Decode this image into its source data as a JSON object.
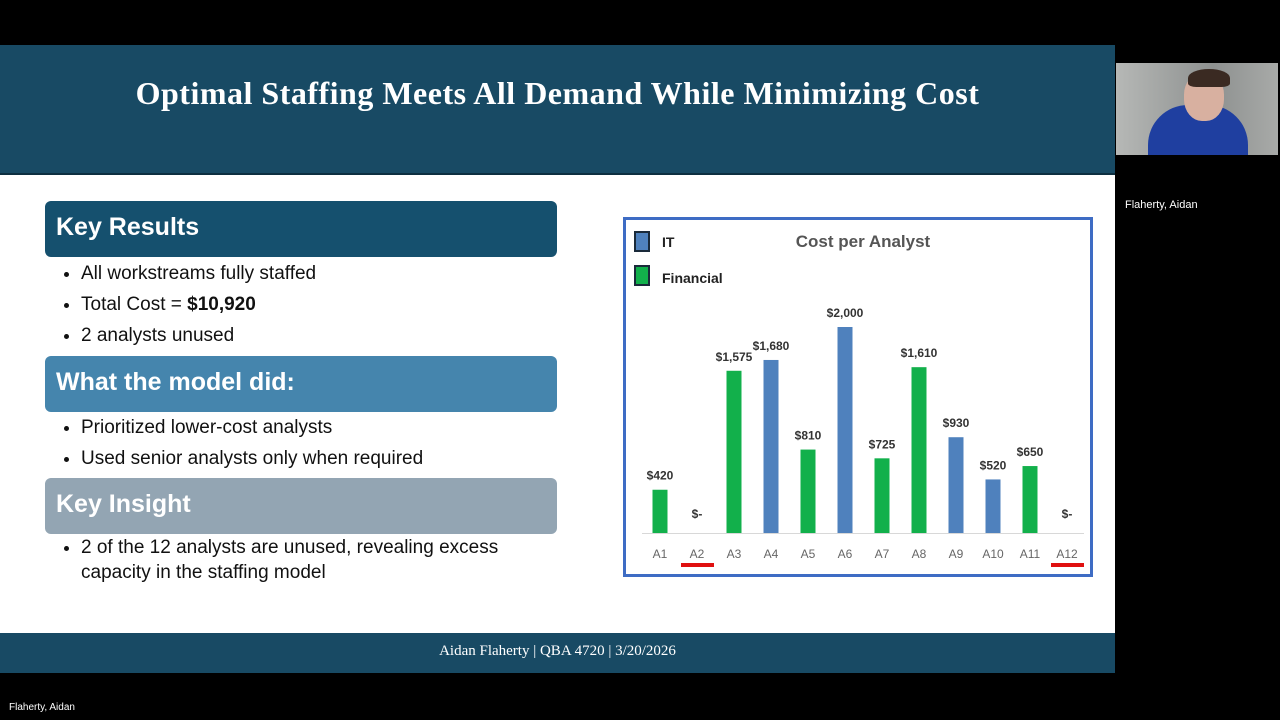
{
  "slide": {
    "title": "Optimal Staffing Meets All Demand While Minimizing Cost",
    "sections": [
      {
        "heading": "Key Results",
        "color": "#15506e",
        "bullets": [
          "All workstreams fully staffed",
          "Total Cost = ",
          "2 analysts unused"
        ],
        "total_cost": "$10,920"
      },
      {
        "heading": "What the model did:",
        "color": "#4585ad",
        "bullets": [
          "Prioritized lower-cost analysts",
          "Used senior analysts only when required"
        ]
      },
      {
        "heading": "Key Insight",
        "color": "#93a5b3",
        "bullets": [
          "2 of the 12 analysts are unused, revealing excess capacity in the staffing model"
        ]
      }
    ],
    "footer": "Aidan Flaherty  |  QBA 4720  |  3/20/2026"
  },
  "chart_data": {
    "type": "bar",
    "title": "Cost per Analyst",
    "categories": [
      "A1",
      "A2",
      "A3",
      "A4",
      "A5",
      "A6",
      "A7",
      "A8",
      "A9",
      "A10",
      "A11",
      "A12"
    ],
    "values": [
      420,
      0,
      1575,
      1680,
      810,
      2000,
      725,
      1610,
      930,
      520,
      650,
      0
    ],
    "data_labels": [
      "$420",
      "$-",
      "$1,575",
      "$1,680",
      "$810",
      "$2,000",
      "$725",
      "$1,610",
      "$930",
      "$520",
      "$650",
      "$-"
    ],
    "group": [
      "Financial",
      "Financial",
      "Financial",
      "IT",
      "Financial",
      "IT",
      "Financial",
      "Financial",
      "IT",
      "IT",
      "Financial",
      "Financial"
    ],
    "legend": [
      {
        "name": "IT",
        "color": "#4f81bd"
      },
      {
        "name": "Financial",
        "color": "#12b04b"
      }
    ],
    "legend_position": "top-left",
    "highlighted_unused": [
      "A2",
      "A12"
    ],
    "highlight_color": "#e01010",
    "ylim": [
      0,
      2000
    ],
    "grid": false
  },
  "participant": {
    "name": "Flaherty, Aidan"
  }
}
